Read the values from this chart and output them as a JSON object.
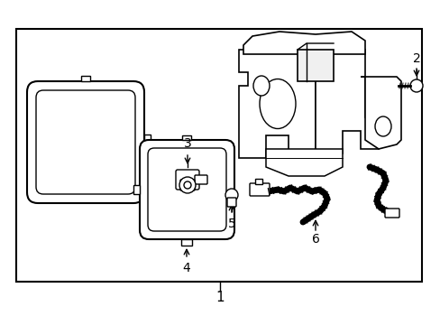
{
  "background_color": "#ffffff",
  "line_color": "#000000",
  "text_color": "#000000",
  "label_1": "1",
  "label_2": "2",
  "label_3": "3",
  "label_4": "4",
  "label_5": "5",
  "label_6": "6",
  "fig_width": 4.89,
  "fig_height": 3.6,
  "dpi": 100
}
